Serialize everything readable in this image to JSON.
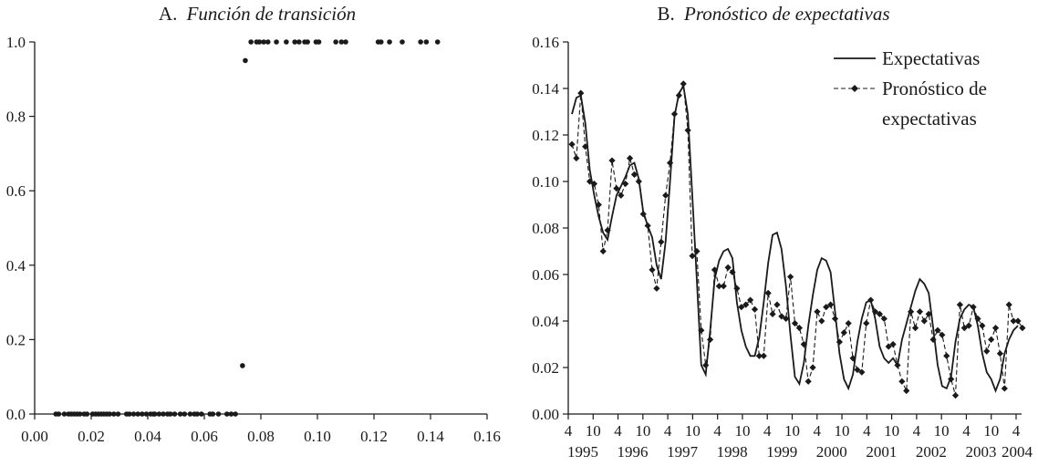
{
  "chart_data": [
    {
      "type": "scatter",
      "title_prefix": "A.",
      "title": "Función de transición",
      "xlim": [
        0.0,
        0.16
      ],
      "ylim": [
        0.0,
        1.0
      ],
      "xticks": [
        "0.00",
        "0.02",
        "0.04",
        "0.06",
        "0.08",
        "0.10",
        "0.12",
        "0.14",
        "0.16"
      ],
      "yticks": [
        "0.0",
        "0.2",
        "0.4",
        "0.6",
        "0.8",
        "1.0"
      ],
      "points": [
        [
          0.0075,
          0
        ],
        [
          0.0085,
          0
        ],
        [
          0.0105,
          0
        ],
        [
          0.012,
          0
        ],
        [
          0.013,
          0
        ],
        [
          0.014,
          0
        ],
        [
          0.015,
          0
        ],
        [
          0.016,
          0
        ],
        [
          0.0175,
          0
        ],
        [
          0.0185,
          0
        ],
        [
          0.0205,
          0
        ],
        [
          0.0215,
          0
        ],
        [
          0.0225,
          0
        ],
        [
          0.0235,
          0
        ],
        [
          0.0245,
          0
        ],
        [
          0.0255,
          0
        ],
        [
          0.0265,
          0
        ],
        [
          0.028,
          0
        ],
        [
          0.0295,
          0
        ],
        [
          0.0325,
          0
        ],
        [
          0.0335,
          0
        ],
        [
          0.035,
          0
        ],
        [
          0.0365,
          0
        ],
        [
          0.038,
          0
        ],
        [
          0.0395,
          0
        ],
        [
          0.041,
          0
        ],
        [
          0.042,
          0
        ],
        [
          0.0425,
          0
        ],
        [
          0.044,
          0
        ],
        [
          0.0455,
          0
        ],
        [
          0.047,
          0
        ],
        [
          0.048,
          0
        ],
        [
          0.0495,
          0
        ],
        [
          0.0515,
          0
        ],
        [
          0.053,
          0
        ],
        [
          0.055,
          0
        ],
        [
          0.0565,
          0
        ],
        [
          0.0575,
          0
        ],
        [
          0.059,
          0
        ],
        [
          0.062,
          0
        ],
        [
          0.063,
          0
        ],
        [
          0.065,
          0
        ],
        [
          0.068,
          0
        ],
        [
          0.0695,
          0
        ],
        [
          0.071,
          0
        ],
        [
          0.0735,
          0.13
        ],
        [
          0.0745,
          0.95
        ],
        [
          0.0765,
          1.0
        ],
        [
          0.0785,
          1.0
        ],
        [
          0.0795,
          1.0
        ],
        [
          0.081,
          1.0
        ],
        [
          0.0825,
          1.0
        ],
        [
          0.0855,
          1.0
        ],
        [
          0.089,
          1.0
        ],
        [
          0.092,
          1.0
        ],
        [
          0.0935,
          1.0
        ],
        [
          0.0955,
          1.0
        ],
        [
          0.0965,
          1.0
        ],
        [
          0.0995,
          1.0
        ],
        [
          0.1005,
          1.0
        ],
        [
          0.1065,
          1.0
        ],
        [
          0.1085,
          1.0
        ],
        [
          0.11,
          1.0
        ],
        [
          0.1215,
          1.0
        ],
        [
          0.1225,
          1.0
        ],
        [
          0.1255,
          1.0
        ],
        [
          0.13,
          1.0
        ],
        [
          0.1365,
          1.0
        ],
        [
          0.1385,
          1.0
        ],
        [
          0.1425,
          1.0
        ]
      ]
    },
    {
      "type": "line",
      "title_prefix": "B.",
      "title": "Pronóstico de expectativas",
      "ylim": [
        0.0,
        0.16
      ],
      "yticks": [
        "0.00",
        "0.02",
        "0.04",
        "0.06",
        "0.08",
        "0.10",
        "0.12",
        "0.14",
        "0.16"
      ],
      "xticks_top": [
        "4",
        "10",
        "4",
        "10",
        "4",
        "10",
        "4",
        "10",
        "4",
        "10",
        "4",
        "10",
        "4",
        "10",
        "4",
        "10",
        "4",
        "10",
        "4"
      ],
      "xticks_bottom": [
        "1995",
        "1996",
        "1997",
        "1998",
        "1999",
        "2000",
        "2001",
        "2002",
        "2003",
        "2004"
      ],
      "legend": {
        "position": "top-right",
        "entries": [
          "Expectativas",
          "Pronóstico de",
          "expectativas"
        ]
      },
      "series": [
        {
          "name": "Expectativas",
          "style": "solid",
          "values": [
            0.129,
            0.136,
            0.137,
            0.125,
            0.105,
            0.094,
            0.085,
            0.078,
            0.075,
            0.085,
            0.094,
            0.098,
            0.102,
            0.107,
            0.108,
            0.101,
            0.087,
            0.081,
            0.076,
            0.064,
            0.058,
            0.074,
            0.1,
            0.128,
            0.138,
            0.141,
            0.129,
            0.094,
            0.058,
            0.021,
            0.017,
            0.036,
            0.058,
            0.066,
            0.07,
            0.071,
            0.067,
            0.048,
            0.036,
            0.029,
            0.025,
            0.025,
            0.033,
            0.048,
            0.065,
            0.077,
            0.078,
            0.071,
            0.055,
            0.034,
            0.016,
            0.013,
            0.022,
            0.038,
            0.051,
            0.062,
            0.067,
            0.066,
            0.061,
            0.044,
            0.026,
            0.015,
            0.011,
            0.017,
            0.031,
            0.041,
            0.048,
            0.049,
            0.041,
            0.029,
            0.024,
            0.022,
            0.024,
            0.021,
            0.032,
            0.039,
            0.046,
            0.053,
            0.058,
            0.056,
            0.052,
            0.037,
            0.021,
            0.012,
            0.011,
            0.016,
            0.031,
            0.041,
            0.045,
            0.047,
            0.046,
            0.038,
            0.026,
            0.018,
            0.015,
            0.01,
            0.015,
            0.026,
            0.032,
            0.036,
            0.038
          ]
        },
        {
          "name": "Pronóstico de expectativas",
          "style": "dashed-diamond",
          "values": [
            0.116,
            0.11,
            0.138,
            0.115,
            0.1,
            0.099,
            0.09,
            0.07,
            0.079,
            0.109,
            0.097,
            0.094,
            0.099,
            0.11,
            0.103,
            0.1,
            0.086,
            0.081,
            0.062,
            0.054,
            0.074,
            0.094,
            0.108,
            0.129,
            0.137,
            0.142,
            0.122,
            0.068,
            0.07,
            0.036,
            0.021,
            0.032,
            0.062,
            0.055,
            0.055,
            0.063,
            0.061,
            0.054,
            0.046,
            0.047,
            0.049,
            0.045,
            0.025,
            0.025,
            0.052,
            0.043,
            0.047,
            0.042,
            0.041,
            0.059,
            0.039,
            0.037,
            0.03,
            0.014,
            0.02,
            0.044,
            0.04,
            0.046,
            0.047,
            0.041,
            0.031,
            0.035,
            0.039,
            0.024,
            0.019,
            0.018,
            0.039,
            0.049,
            0.044,
            0.043,
            0.041,
            0.029,
            0.03,
            0.021,
            0.014,
            0.01,
            0.044,
            0.037,
            0.044,
            0.04,
            0.043,
            0.032,
            0.036,
            0.034,
            0.025,
            0.015,
            0.008,
            0.047,
            0.037,
            0.038,
            0.046,
            0.041,
            0.038,
            0.027,
            0.032,
            0.037,
            0.026,
            0.011,
            0.047,
            0.04,
            0.04,
            0.037
          ]
        }
      ]
    }
  ]
}
